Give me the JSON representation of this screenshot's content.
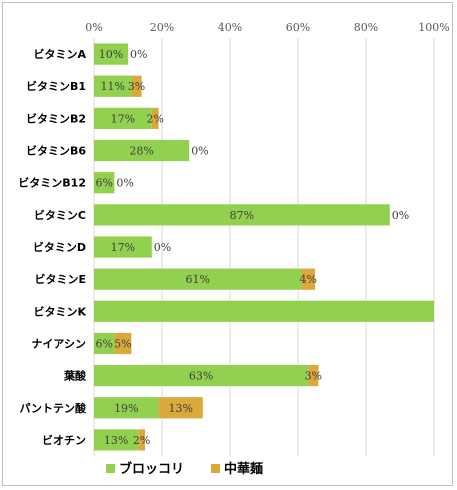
{
  "chart_data": {
    "type": "bar",
    "orientation": "horizontal",
    "stacked": true,
    "categories": [
      "ビタミンA",
      "ビタミンB1",
      "ビタミンB2",
      "ビタミンB6",
      "ビタミンB12",
      "ビタミンC",
      "ビタミンD",
      "ビタミンE",
      "ビタミンK",
      "ナイアシン",
      "葉酸",
      "パントテン酸",
      "ビオチン"
    ],
    "series": [
      {
        "name": "ブロッコリ",
        "color": "#92d050",
        "values": [
          10,
          11,
          17,
          28,
          6,
          87,
          17,
          61,
          100,
          6,
          63,
          19,
          13
        ],
        "labels": [
          "10%",
          "11%",
          "17%",
          "28%",
          "6%",
          "87%",
          "17%",
          "61%",
          "",
          "6%",
          "63%",
          "19%",
          "13%"
        ]
      },
      {
        "name": "中華麺",
        "color": "#d9a93a",
        "values": [
          0,
          3,
          2,
          0,
          0,
          0,
          0,
          4,
          0,
          5,
          3,
          13,
          2
        ],
        "labels": [
          "0%",
          "3%",
          "2%",
          "0%",
          "0%",
          "0%",
          "0%",
          "4%",
          "",
          "5%",
          "3%",
          "13%",
          "2%"
        ]
      }
    ],
    "xlim": [
      0,
      100
    ],
    "xticks": [
      "0%",
      "20%",
      "40%",
      "60%",
      "80%",
      "100%"
    ],
    "xtick_values": [
      0,
      20,
      40,
      60,
      80,
      100
    ],
    "grid": true,
    "legend": "bottom"
  }
}
